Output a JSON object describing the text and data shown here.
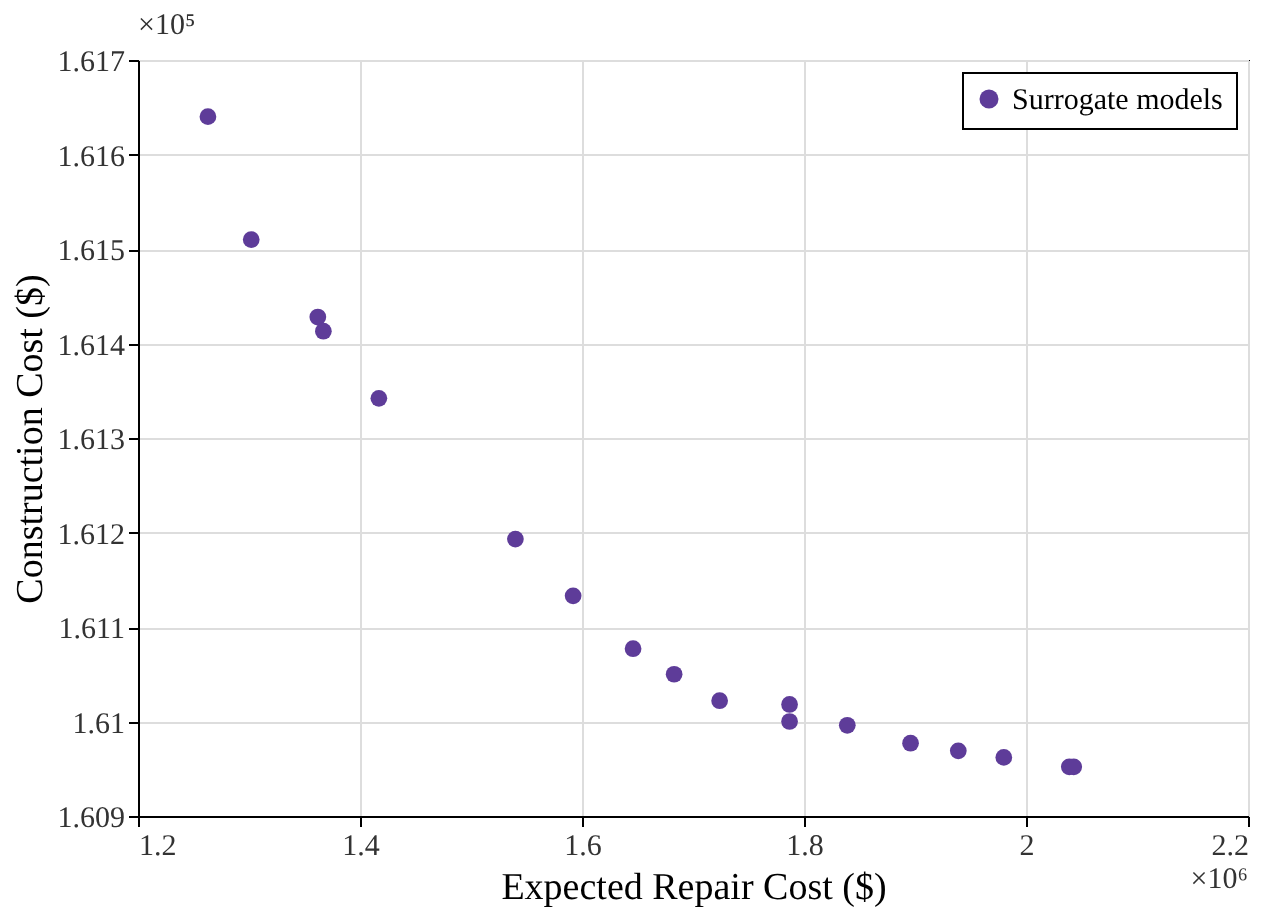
{
  "chart_data": {
    "type": "scatter",
    "xlabel": "Expected Repair Cost ($)",
    "ylabel": "Construction Cost ($)",
    "x": [
      1.263,
      1.302,
      1.362,
      1.367,
      1.417,
      1.54,
      1.592,
      1.646,
      1.683,
      1.724,
      1.787,
      1.787,
      1.839,
      1.896,
      1.939,
      1.98,
      2.039,
      2.043
    ],
    "series": [
      {
        "name": "Surrogate models",
        "color": "#5e3c99",
        "values": [
          1.6164,
          1.6151,
          1.61428,
          1.61413,
          1.61342,
          1.61193,
          1.61133,
          1.61077,
          1.6105,
          1.61022,
          1.61018,
          1.61,
          1.60996,
          1.60977,
          1.60969,
          1.60962,
          1.60952,
          1.60952
        ]
      }
    ],
    "xlim": [
      1.2,
      2.2
    ],
    "xticks": [
      1.2,
      1.4,
      1.6,
      1.8,
      2,
      2.2
    ],
    "ylim": [
      1.609,
      1.617
    ],
    "yticks": [
      1.609,
      1.61,
      1.611,
      1.612,
      1.613,
      1.614,
      1.615,
      1.616,
      1.617
    ],
    "annotations": [
      "×10⁵",
      "×10⁶"
    ],
    "grid": true,
    "legend": "top right",
    "marker": "circle"
  }
}
